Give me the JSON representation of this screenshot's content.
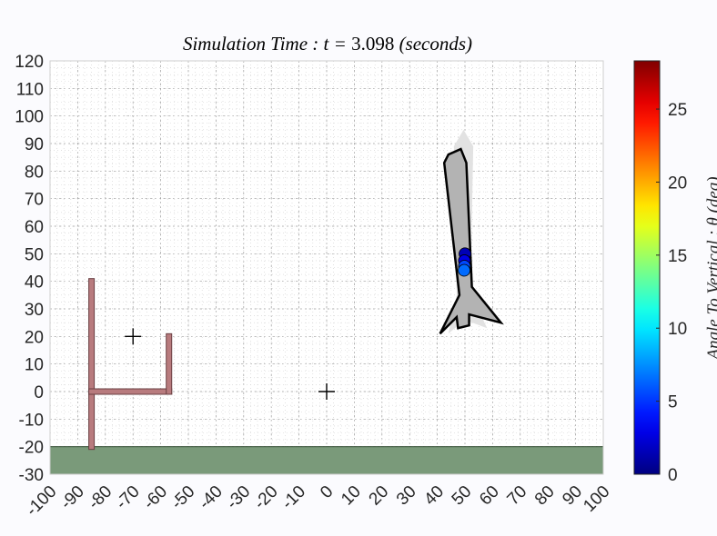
{
  "title": {
    "label": "Simulation Time : t",
    "equals": " = ",
    "value": "3.098",
    "unit": "(seconds)"
  },
  "chart_data": {
    "type": "scatter",
    "xlim": [
      -100,
      100
    ],
    "ylim": [
      -30,
      120
    ],
    "x_ticks": [
      -100,
      -90,
      -80,
      -70,
      -60,
      -50,
      -40,
      -30,
      -20,
      -10,
      0,
      10,
      20,
      30,
      40,
      50,
      60,
      70,
      80,
      90,
      100
    ],
    "y_ticks": [
      -30,
      -20,
      -10,
      0,
      10,
      20,
      30,
      40,
      50,
      60,
      70,
      80,
      90,
      100,
      110,
      120
    ],
    "x_tick_labels": [
      "-100",
      "-90",
      "-80",
      "-70",
      "-60",
      "-50",
      "-40",
      "-30",
      "-20",
      "-10",
      "0",
      "10",
      "20",
      "30",
      "40",
      "50",
      "60",
      "70",
      "80",
      "90",
      "100"
    ],
    "y_tick_labels": [
      "-30",
      "-20",
      "-10",
      "0",
      "10",
      "20",
      "30",
      "40",
      "50",
      "60",
      "70",
      "80",
      "90",
      "100",
      "110",
      "120"
    ],
    "grid": true,
    "ground": {
      "y_top": -20,
      "y_bottom": -30,
      "color": "#7a9a7a"
    },
    "structure": {
      "color": "#b87b7e",
      "segments": [
        {
          "x1": -85,
          "y1": -20,
          "x2": -85,
          "y2": 40
        },
        {
          "x1": -85,
          "y1": 0,
          "x2": -57,
          "y2": 0
        },
        {
          "x1": -57,
          "y1": 0,
          "x2": -57,
          "y2": 20
        }
      ]
    },
    "markers": [
      {
        "x": -70,
        "y": 20
      },
      {
        "x": 0,
        "y": 0
      }
    ],
    "rocket_shadow": {
      "color": "#e2e2e2",
      "points": [
        [
          49.5,
          95
        ],
        [
          53,
          89
        ],
        [
          52,
          36
        ],
        [
          58,
          23
        ],
        [
          50,
          26
        ],
        [
          44,
          21
        ],
        [
          47,
          35
        ],
        [
          46,
          89
        ]
      ]
    },
    "rocket": {
      "color": "#b3b3b3",
      "points": [
        [
          44,
          86
        ],
        [
          42.5,
          83
        ],
        [
          48,
          35
        ],
        [
          41,
          21
        ],
        [
          47,
          27
        ],
        [
          47.5,
          23
        ],
        [
          51.5,
          24
        ],
        [
          51.5,
          28
        ],
        [
          63,
          25
        ],
        [
          52.5,
          38
        ],
        [
          50.5,
          83
        ],
        [
          48.5,
          88
        ]
      ]
    },
    "points": [
      {
        "x": 50,
        "y": 50,
        "theta": 1.5
      },
      {
        "x": 49.8,
        "y": 47.5,
        "theta": 2.8
      },
      {
        "x": 49.8,
        "y": 45.5,
        "theta": 5.5
      },
      {
        "x": 49.7,
        "y": 44,
        "theta": 6.5
      }
    ],
    "colorbar": {
      "label": "Angle To Vertical : θ (deg)",
      "min": 0,
      "max": 28.3,
      "ticks": [
        0,
        5,
        10,
        15,
        20,
        25
      ],
      "tick_labels": [
        "0",
        "5",
        "10",
        "15",
        "20",
        "25"
      ],
      "colormap": "jet"
    }
  }
}
